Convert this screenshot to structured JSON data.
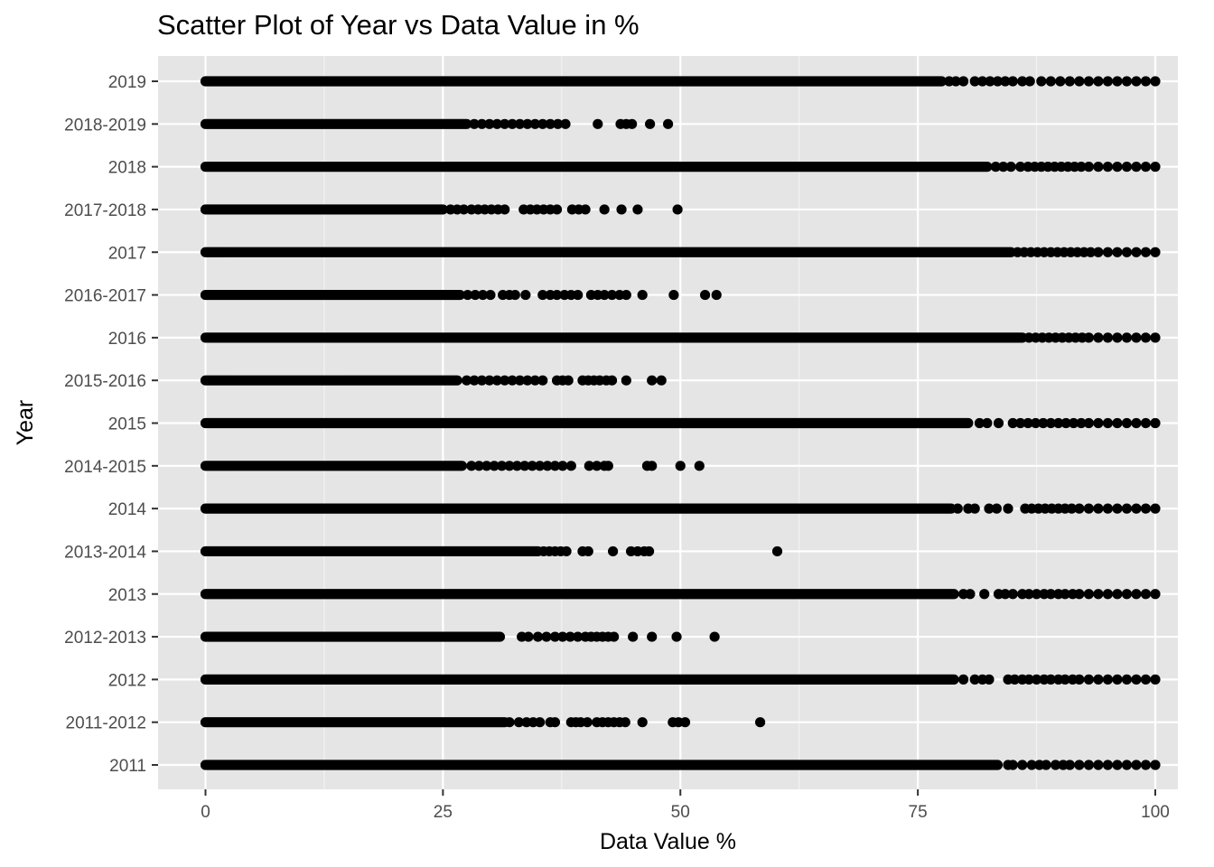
{
  "chart_data": {
    "type": "scatter",
    "title": "Scatter Plot of Year vs Data Value in %",
    "xlabel": "Data Value %",
    "ylabel": "Year",
    "xlim": [
      -2,
      101
    ],
    "xticks": [
      0,
      25,
      50,
      75,
      100
    ],
    "categories": [
      "2011",
      "2011-2012",
      "2012",
      "2012-2013",
      "2013",
      "2013-2014",
      "2014",
      "2014-2015",
      "2015",
      "2015-2016",
      "2016",
      "2016-2017",
      "2017",
      "2017-2018",
      "2018",
      "2018-2019",
      "2019"
    ],
    "grid": true,
    "legend": "none",
    "background": "#e5e5e5",
    "point_color": "#000000",
    "series": [
      {
        "category": "2011",
        "dense_range": [
          0,
          83.4
        ],
        "x": [
          84.5,
          85.0,
          86.0,
          87.0,
          87.8,
          88.5,
          89.5,
          90.3,
          91.0,
          92.0,
          93.0,
          94.0,
          95.0,
          96.0,
          97.0,
          98.0,
          99.0,
          100.0
        ]
      },
      {
        "category": "2011-2012",
        "dense_range": [
          0,
          31.5
        ],
        "x": [
          32.0,
          33.0,
          33.8,
          34.5,
          35.2,
          36.3,
          36.8,
          38.5,
          39.0,
          39.5,
          40.2,
          41.2,
          41.8,
          42.4,
          43.0,
          43.6,
          44.2,
          46.0,
          49.2,
          49.8,
          50.5,
          58.4
        ]
      },
      {
        "category": "2012",
        "dense_range": [
          0,
          78.8
        ],
        "x": [
          79.8,
          81.0,
          81.8,
          82.5,
          84.5,
          85.2,
          86.0,
          86.7,
          87.5,
          88.3,
          89.0,
          89.8,
          90.5,
          91.3,
          92.0,
          93.0,
          94.0,
          95.0,
          96.0,
          97.0,
          98.0,
          99.0,
          100.0
        ]
      },
      {
        "category": "2012-2013",
        "dense_range": [
          0,
          31.0
        ],
        "x": [
          33.3,
          34.0,
          35.0,
          35.9,
          36.8,
          37.6,
          38.4,
          39.2,
          40.0,
          40.6,
          41.2,
          41.8,
          42.4,
          43.0,
          45.0,
          47.0,
          49.6,
          53.6
        ]
      },
      {
        "category": "2013",
        "dense_range": [
          0,
          78.8
        ],
        "x": [
          79.8,
          80.5,
          82.0,
          83.5,
          84.2,
          85.0,
          86.0,
          86.7,
          87.5,
          88.3,
          89.0,
          89.8,
          90.5,
          91.3,
          92.0,
          93.0,
          94.0,
          95.0,
          96.0,
          97.0,
          98.0,
          99.0,
          100.0
        ]
      },
      {
        "category": "2013-2014",
        "dense_range": [
          0,
          35.0
        ],
        "x": [
          35.6,
          36.2,
          36.8,
          37.4,
          38.0,
          39.7,
          40.3,
          42.9,
          44.8,
          45.5,
          46.2,
          46.7,
          60.2
        ]
      },
      {
        "category": "2014",
        "dense_range": [
          0,
          78.5
        ],
        "x": [
          79.2,
          80.3,
          81.0,
          82.5,
          83.3,
          84.5,
          86.3,
          87.0,
          87.7,
          88.4,
          89.1,
          89.8,
          90.5,
          91.2,
          92.0,
          93.0,
          94.0,
          95.0,
          96.0,
          97.0,
          98.0,
          99.0,
          100.0
        ]
      },
      {
        "category": "2014-2015",
        "dense_range": [
          0,
          27.0
        ],
        "x": [
          28.0,
          28.8,
          29.6,
          30.4,
          31.2,
          32.0,
          32.8,
          33.6,
          34.4,
          35.2,
          36.0,
          36.8,
          37.6,
          38.5,
          40.4,
          41.2,
          42.0,
          42.4,
          46.5,
          47.0,
          50.0,
          52.0
        ]
      },
      {
        "category": "2015",
        "dense_range": [
          0,
          80.3
        ],
        "x": [
          81.5,
          82.3,
          83.5,
          85.0,
          85.8,
          86.6,
          87.4,
          88.2,
          89.0,
          89.8,
          90.6,
          91.4,
          92.2,
          93.0,
          94.0,
          95.0,
          96.0,
          97.0,
          98.0,
          99.0,
          100.0
        ]
      },
      {
        "category": "2015-2016",
        "dense_range": [
          0,
          26.5
        ],
        "x": [
          27.5,
          28.3,
          29.1,
          29.9,
          30.7,
          31.5,
          32.3,
          33.1,
          33.9,
          34.7,
          35.5,
          37.0,
          37.6,
          38.2,
          39.7,
          40.3,
          40.9,
          41.5,
          42.2,
          42.8,
          44.3,
          47.0,
          48.0
        ]
      },
      {
        "category": "2016",
        "dense_range": [
          0,
          86.0
        ],
        "x": [
          86.7,
          87.4,
          88.1,
          88.8,
          89.5,
          90.2,
          90.9,
          91.6,
          92.3,
          93.0,
          94.0,
          95.0,
          96.0,
          97.0,
          98.0,
          99.0,
          100.0
        ]
      },
      {
        "category": "2016-2017",
        "dense_range": [
          0,
          26.8
        ],
        "x": [
          27.6,
          28.4,
          29.2,
          30.0,
          31.3,
          32.0,
          32.6,
          33.7,
          35.5,
          36.3,
          37.0,
          37.8,
          38.5,
          39.2,
          40.6,
          41.3,
          42.0,
          42.8,
          43.6,
          44.3,
          46.0,
          49.3,
          52.6,
          53.8
        ]
      },
      {
        "category": "2017",
        "dense_range": [
          0,
          84.8
        ],
        "x": [
          85.5,
          86.2,
          86.9,
          87.6,
          88.3,
          89.0,
          89.7,
          90.4,
          91.1,
          91.8,
          92.5,
          93.2,
          94.0,
          95.0,
          96.0,
          97.0,
          98.0,
          99.0,
          100.0
        ]
      },
      {
        "category": "2017-2018",
        "dense_range": [
          0,
          25.0
        ],
        "x": [
          25.8,
          26.5,
          27.2,
          28.0,
          28.7,
          29.4,
          30.1,
          30.8,
          31.5,
          33.5,
          34.2,
          34.9,
          35.6,
          36.3,
          37.0,
          38.6,
          39.3,
          40.0,
          42.0,
          43.8,
          45.5,
          49.7
        ]
      },
      {
        "category": "2018",
        "dense_range": [
          0,
          82.3
        ],
        "x": [
          83.2,
          84.0,
          84.8,
          85.8,
          86.6,
          87.3,
          88.0,
          88.7,
          89.4,
          90.1,
          90.8,
          91.5,
          92.2,
          93.0,
          94.0,
          95.0,
          96.0,
          97.0,
          98.0,
          99.0,
          100.0
        ]
      },
      {
        "category": "2018-2019",
        "dense_range": [
          0,
          27.5
        ],
        "x": [
          28.3,
          29.1,
          29.9,
          30.7,
          31.5,
          32.3,
          33.1,
          33.9,
          34.7,
          35.5,
          36.3,
          37.1,
          37.9,
          41.3,
          43.7,
          44.3,
          44.9,
          46.8,
          48.7
        ]
      },
      {
        "category": "2019",
        "dense_range": [
          0,
          77.5
        ],
        "x": [
          78.3,
          79.0,
          79.8,
          81.0,
          81.8,
          82.6,
          83.4,
          84.2,
          85.0,
          86.0,
          86.8,
          88.0,
          89.0,
          90.0,
          91.0,
          92.0,
          93.0,
          94.0,
          95.0,
          96.0,
          97.0,
          98.0,
          99.0,
          100.0
        ]
      }
    ]
  }
}
